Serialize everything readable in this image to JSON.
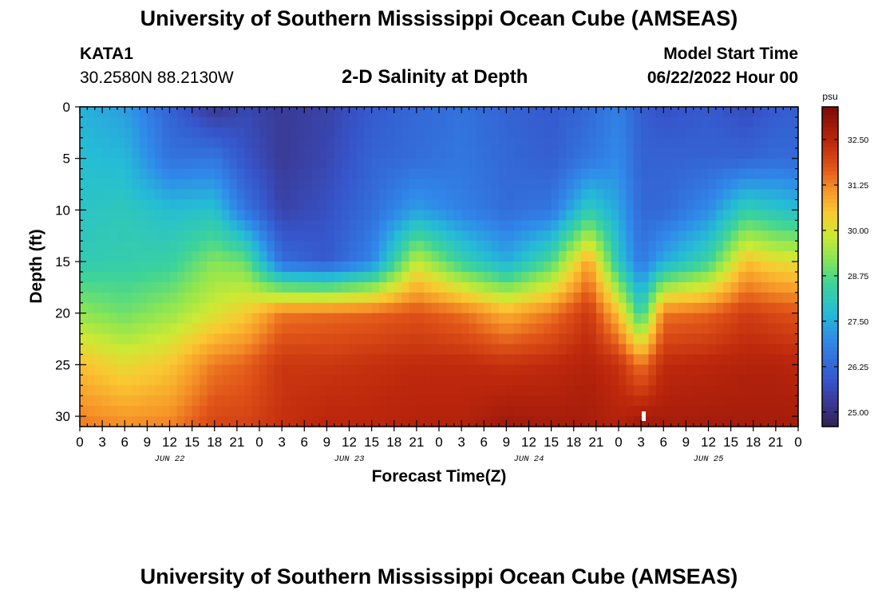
{
  "page": {
    "title_top": "University of Southern Mississippi Ocean Cube (AMSEAS)",
    "title_bottom": "University of Southern Mississippi Ocean Cube (AMSEAS)",
    "station": "KATA1",
    "coords": "30.2580N  88.2130W",
    "subtitle": "2-D Salinity at Depth",
    "start_label": "Model Start Time",
    "start_value": "06/22/2022 Hour 00"
  },
  "colors": {
    "background": "#ffffff",
    "low": "#2f2f6a",
    "high": "#8e0f0b"
  },
  "chart_data": {
    "type": "heatmap",
    "xlabel": "Forecast Time(Z)",
    "ylabel": "Depth (ft)",
    "x_range_hours": [
      0,
      96
    ],
    "y_range_ft": [
      0,
      31
    ],
    "x_tick_labels": [
      "0",
      "3",
      "6",
      "9",
      "12",
      "15",
      "18",
      "21",
      "0",
      "3",
      "6",
      "9",
      "12",
      "15",
      "18",
      "21",
      "0",
      "3",
      "6",
      "9",
      "12",
      "15",
      "18",
      "21",
      "0",
      "3",
      "6",
      "9",
      "12",
      "15",
      "18",
      "21",
      "0"
    ],
    "date_labels": [
      {
        "hour": 12,
        "label": "JUN 22"
      },
      {
        "hour": 36,
        "label": "JUN 23"
      },
      {
        "hour": 60,
        "label": "JUN 24"
      },
      {
        "hour": 84,
        "label": "JUN 25"
      }
    ],
    "y_ticks": [
      0,
      5,
      10,
      15,
      20,
      25,
      30
    ],
    "colorbar": {
      "unit": "psu",
      "range": [
        24.6,
        33.4
      ],
      "ticks": [
        "25.00",
        "26.25",
        "27.50",
        "28.75",
        "30.00",
        "31.25",
        "32.50"
      ]
    },
    "profiles_depth_ft": [
      0,
      5,
      10,
      15,
      20,
      25,
      31
    ],
    "profiles": [
      {
        "hour": 0,
        "values": [
          27.6,
          27.8,
          28.0,
          28.2,
          29.3,
          30.6,
          31.4
        ]
      },
      {
        "hour": 6,
        "values": [
          27.3,
          27.7,
          28.1,
          28.3,
          29.0,
          30.2,
          31.2
        ]
      },
      {
        "hour": 12,
        "values": [
          26.2,
          26.5,
          27.8,
          28.4,
          29.4,
          30.5,
          31.3
        ]
      },
      {
        "hour": 18,
        "values": [
          25.2,
          26.6,
          27.9,
          29.2,
          30.0,
          31.4,
          32.0
        ]
      },
      {
        "hour": 22,
        "values": [
          25.6,
          25.9,
          26.6,
          29.0,
          30.4,
          31.6,
          32.0
        ]
      },
      {
        "hour": 27,
        "values": [
          25.3,
          25.3,
          25.5,
          26.4,
          31.4,
          32.2,
          32.3
        ]
      },
      {
        "hour": 33,
        "values": [
          25.5,
          25.6,
          25.8,
          26.0,
          31.5,
          32.2,
          32.5
        ]
      },
      {
        "hour": 39,
        "values": [
          26.0,
          26.2,
          26.4,
          26.9,
          31.6,
          32.3,
          32.5
        ]
      },
      {
        "hour": 45,
        "values": [
          26.3,
          26.4,
          27.3,
          29.8,
          31.8,
          32.4,
          32.6
        ]
      },
      {
        "hour": 51,
        "values": [
          26.5,
          26.6,
          26.8,
          28.4,
          31.5,
          32.4,
          32.6
        ]
      },
      {
        "hour": 57,
        "values": [
          26.2,
          26.3,
          26.4,
          27.5,
          30.8,
          32.3,
          32.9
        ]
      },
      {
        "hour": 63,
        "values": [
          26.0,
          26.1,
          26.6,
          28.7,
          31.4,
          32.4,
          32.8
        ]
      },
      {
        "hour": 68,
        "values": [
          26.3,
          26.6,
          28.2,
          31.0,
          32.2,
          32.6,
          32.8
        ]
      },
      {
        "hour": 72,
        "values": [
          26.8,
          27.0,
          27.4,
          28.0,
          30.6,
          32.3,
          32.6
        ]
      },
      {
        "hour": 75,
        "values": [
          26.1,
          26.2,
          26.3,
          26.6,
          28.3,
          31.4,
          33.0
        ]
      },
      {
        "hour": 78,
        "values": [
          25.8,
          26.2,
          26.3,
          27.5,
          31.4,
          32.4,
          32.8
        ]
      },
      {
        "hour": 84,
        "values": [
          26.0,
          26.2,
          27.0,
          28.5,
          31.6,
          32.5,
          32.8
        ]
      },
      {
        "hour": 89,
        "values": [
          25.7,
          26.2,
          28.3,
          30.6,
          32.1,
          32.6,
          32.8
        ]
      },
      {
        "hour": 93,
        "values": [
          26.0,
          26.4,
          28.0,
          30.2,
          31.9,
          32.6,
          32.8
        ]
      },
      {
        "hour": 96,
        "values": [
          26.1,
          26.3,
          27.8,
          30.1,
          31.8,
          32.5,
          32.8
        ]
      }
    ]
  }
}
